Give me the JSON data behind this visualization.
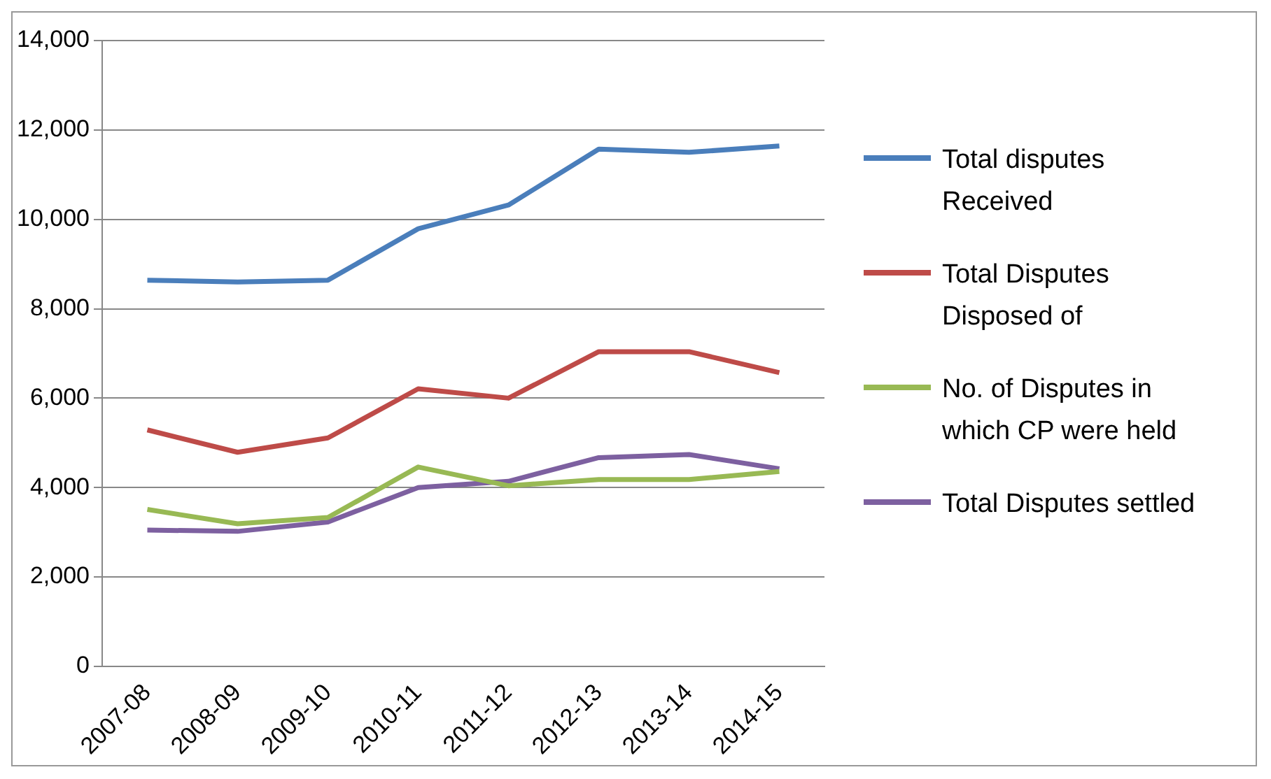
{
  "chart_data": {
    "type": "line",
    "categories": [
      "2007-08",
      "2008-09",
      "2009-10",
      "2010-11",
      "2011-12",
      "2012-13",
      "2013-14",
      "2014-15"
    ],
    "series": [
      {
        "name": "Total disputes Received",
        "color": "#4a7ebb",
        "values": [
          8640,
          8600,
          8640,
          9790,
          10320,
          11570,
          11500,
          11640
        ]
      },
      {
        "name": "Total Disputes Disposed of",
        "color": "#be4b48",
        "values": [
          5290,
          4790,
          5110,
          6210,
          6000,
          7040,
          7040,
          6570
        ]
      },
      {
        "name": "No. of Disputes in which CP were held",
        "color": "#98b954",
        "values": [
          3510,
          3190,
          3330,
          4460,
          4040,
          4180,
          4180,
          4360
        ]
      },
      {
        "name": "Total Disputes settled",
        "color": "#7d60a0",
        "values": [
          3050,
          3020,
          3230,
          4000,
          4140,
          4670,
          4740,
          4420
        ]
      }
    ],
    "ylim": [
      0,
      14000
    ],
    "yticks": [
      0,
      {
        "value": 2000,
        "label": "2,000"
      },
      {
        "value": 4000,
        "label": "4,000"
      },
      {
        "value": 6000,
        "label": "6,000"
      },
      {
        "value": 8000,
        "label": "8,000"
      },
      {
        "value": 10000,
        "label": "10,000"
      },
      {
        "value": 12000,
        "label": "12,000"
      },
      {
        "value": 14000,
        "label": "14,000"
      }
    ],
    "grid": "y",
    "legend": "right",
    "marker": "none",
    "line_style": "solid"
  }
}
